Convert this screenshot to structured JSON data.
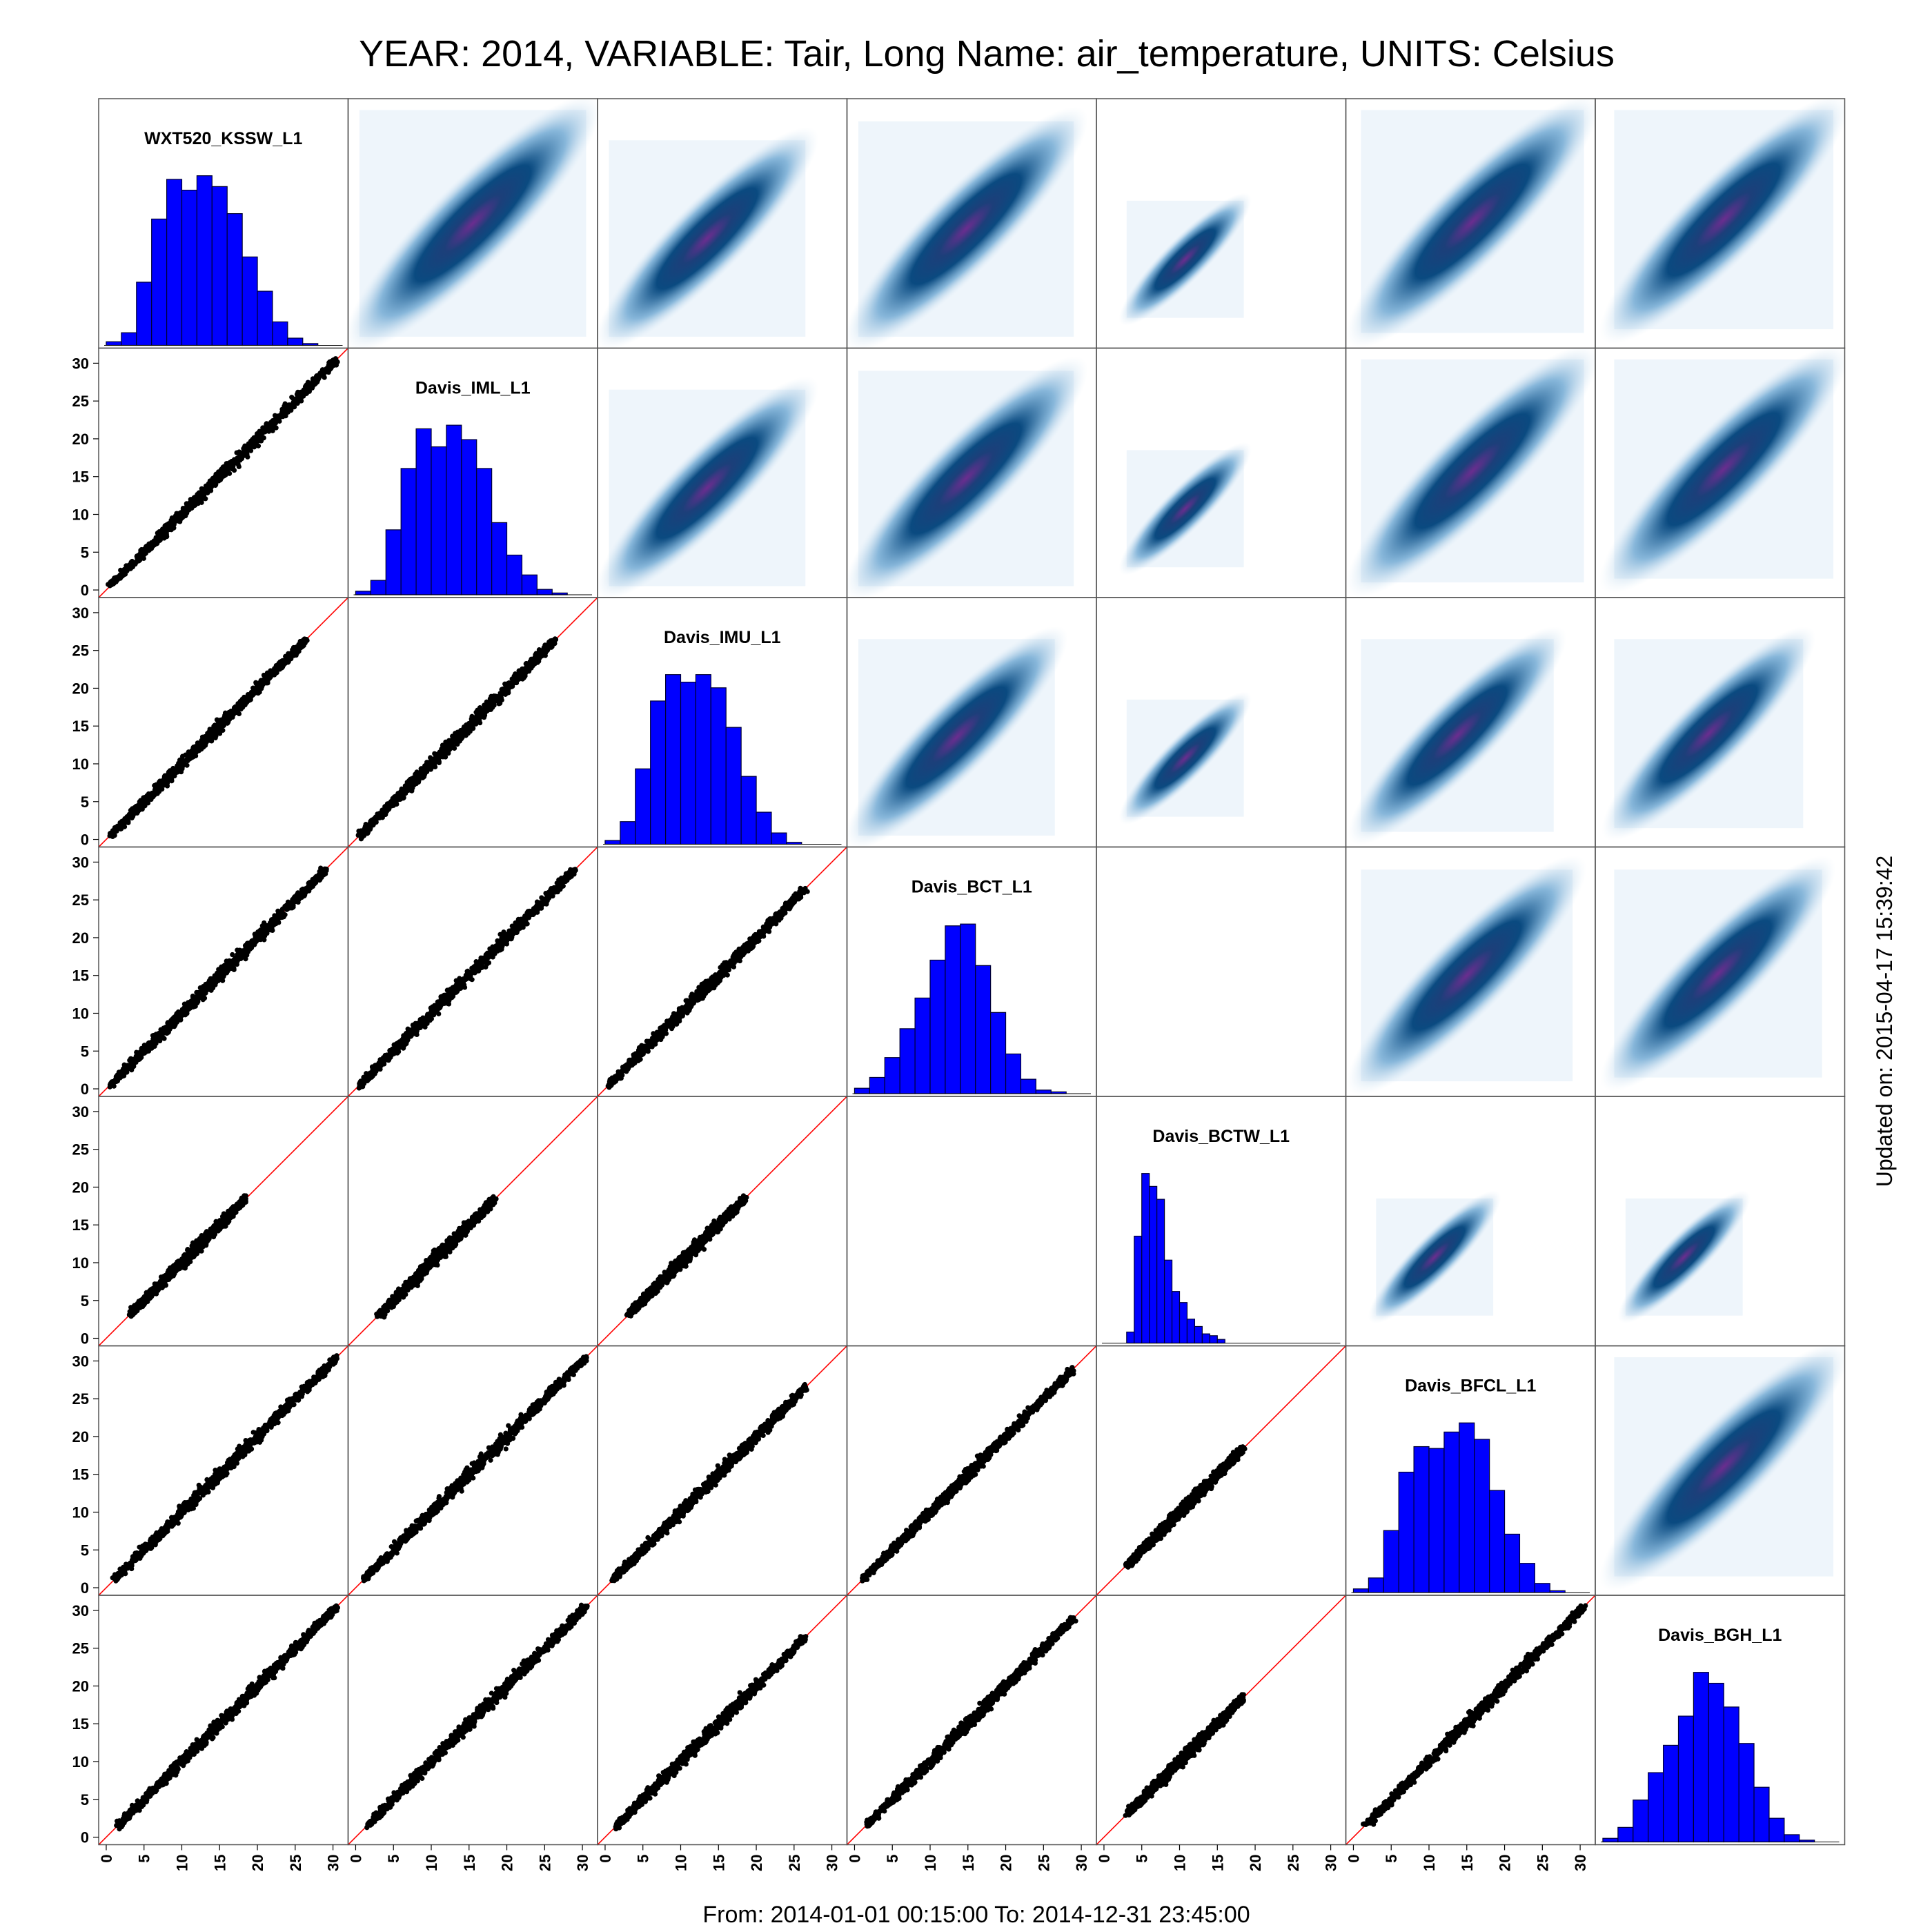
{
  "figure": {
    "title": "YEAR: 2014, VARIABLE: Tair, Long Name: air_temperature, UNITS: Celsius",
    "footer": "From: 2014-01-01 00:15:00 To: 2014-12-31 23:45:00",
    "side_label": "Updated on: 2015-04-17 15:39:42"
  },
  "colors": {
    "histogram_fill": "#0000ff",
    "histogram_edge": "#000033",
    "scatter_point": "#000000",
    "identity_line": "#ff0000",
    "density_low": "#d6e7f5",
    "density_mid": "#0a4a80",
    "density_core": "#6b2d8f",
    "frame": "#555555"
  },
  "chart_data": {
    "type": "scatter_matrix",
    "variables": [
      "WXT520_KSSW_L1",
      "Davis_IML_L1",
      "Davis_IMU_L1",
      "Davis_BCT_L1",
      "Davis_BCTW_L1",
      "Davis_BFCL_L1",
      "Davis_BGH_L1"
    ],
    "axis_range": [
      -1,
      32
    ],
    "ticks": [
      0,
      5,
      10,
      15,
      20,
      25,
      30
    ],
    "tick_labels": [
      "0",
      "5",
      "10",
      "15",
      "20",
      "25",
      "30"
    ],
    "diagonal": "histogram",
    "lower_panels": "scatter with 1:1 line",
    "upper_panels": "density",
    "empty_pairs": [
      [
        3,
        4
      ]
    ],
    "variable_ranges": [
      [
        0.5,
        31.5
      ],
      [
        0.5,
        30.5
      ],
      [
        0.5,
        26.5
      ],
      [
        0,
        29
      ],
      [
        3,
        18.5
      ],
      [
        1,
        30.5
      ],
      [
        1.5,
        30.5
      ]
    ],
    "histograms": [
      {
        "name": "WXT520_KSSW_L1",
        "bin_width": 2,
        "start": 0,
        "counts": [
          2,
          7,
          35,
          70,
          92,
          86,
          94,
          88,
          73,
          49,
          30,
          13,
          4,
          1
        ]
      },
      {
        "name": "Davis_IML_L1",
        "bin_width": 2,
        "start": 0,
        "counts": [
          2,
          8,
          36,
          70,
          92,
          82,
          94,
          86,
          70,
          40,
          22,
          11,
          3,
          1
        ]
      },
      {
        "name": "Davis_IMU_L1",
        "bin_width": 2,
        "start": 0,
        "counts": [
          2,
          12,
          40,
          76,
          90,
          86,
          90,
          83,
          62,
          36,
          17,
          6,
          1
        ]
      },
      {
        "name": "Davis_BCT_L1",
        "bin_width": 2,
        "start": 0,
        "counts": [
          3,
          9,
          20,
          36,
          53,
          74,
          93,
          94,
          71,
          45,
          22,
          8,
          2,
          1
        ]
      },
      {
        "name": "Davis_BCTW_L1",
        "bin_width": 1,
        "start": 3,
        "counts": [
          6,
          58,
          92,
          85,
          78,
          45,
          28,
          22,
          13,
          9,
          5,
          4,
          2
        ]
      },
      {
        "name": "Davis_BFCL_L1",
        "bin_width": 2,
        "start": 0,
        "counts": [
          2,
          8,
          34,
          66,
          80,
          79,
          88,
          93,
          84,
          56,
          32,
          16,
          5,
          1
        ]
      },
      {
        "name": "Davis_BGH_L1",
        "bin_width": 2,
        "start": 0,
        "counts": [
          2,
          8,
          23,
          38,
          53,
          69,
          93,
          87,
          74,
          54,
          30,
          13,
          4,
          1
        ]
      }
    ]
  }
}
